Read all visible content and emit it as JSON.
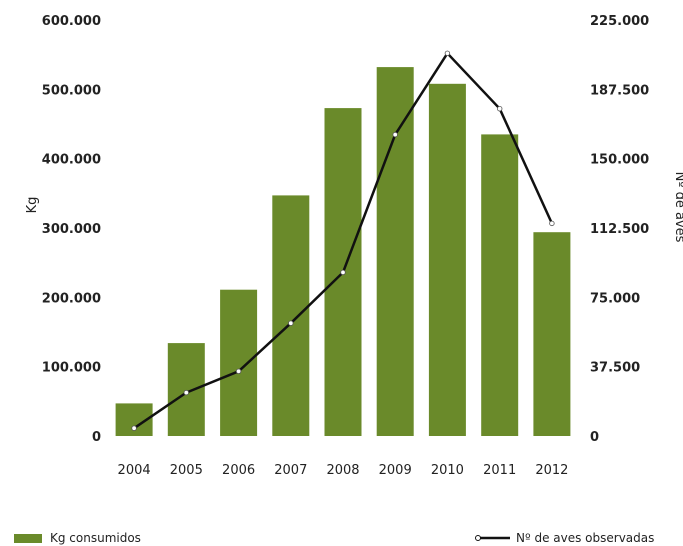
{
  "chart_data": {
    "type": "bar+line",
    "categories": [
      "2004",
      "2005",
      "2006",
      "2007",
      "2008",
      "2009",
      "2010",
      "2011",
      "2012"
    ],
    "series": [
      {
        "name": "Kg consumidos",
        "type": "bar",
        "axis": "left",
        "color": "#6a8a2a",
        "values": [
          47000,
          134000,
          211000,
          347000,
          473000,
          532000,
          508000,
          435000,
          294000
        ]
      },
      {
        "name": "Nº de aves observadas",
        "type": "line",
        "axis": "right",
        "color": "#111111",
        "values": [
          4200,
          23500,
          35000,
          61000,
          88500,
          163000,
          207000,
          177000,
          115000
        ]
      }
    ],
    "ylabel": "Kg",
    "y2label": "Nº de aves",
    "ylim": [
      0,
      600000
    ],
    "y2lim": [
      0,
      225000
    ],
    "yticks": [
      "0",
      "100.000",
      "200.000",
      "300.000",
      "400.000",
      "500.000",
      "600.000"
    ],
    "y2ticks": [
      "0",
      "37.500",
      "75.000",
      "112.500",
      "150.000",
      "187.500",
      "225.000"
    ],
    "grid": false,
    "legend": "bottom"
  }
}
